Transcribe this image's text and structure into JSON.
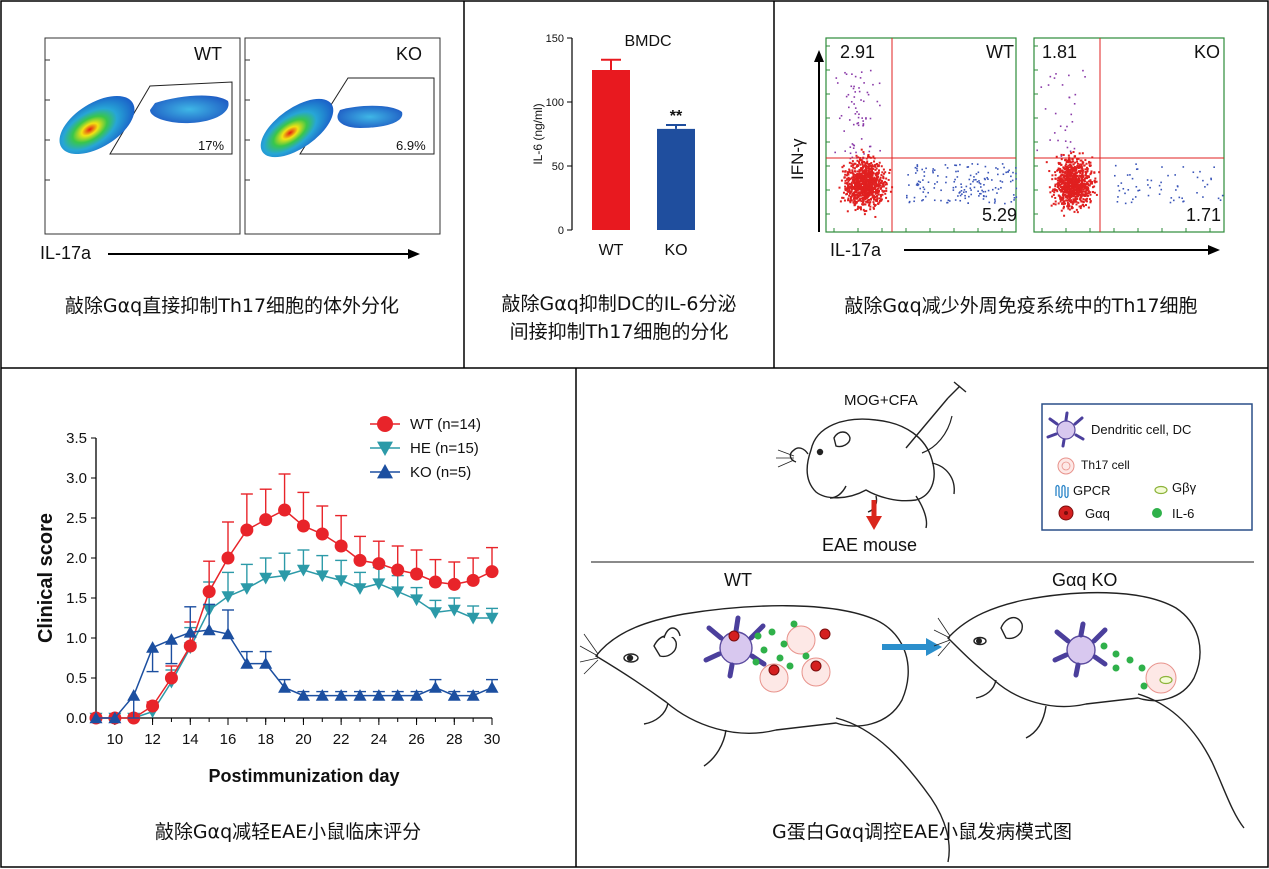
{
  "panels": {
    "flow_wt_ko": {
      "wt_label": "WT",
      "ko_label": "KO",
      "wt_gate_percent": "17%",
      "ko_gate_percent": "6.9%",
      "x_axis_label": "IL-17a",
      "caption": "敲除Gαq直接抑制Th17细胞的体外分化"
    },
    "il6_bar": {
      "caption_line1": "敲除Gαq抑制DC的IL-6分泌",
      "caption_line2": "间接抑制Th17细胞的分化"
    },
    "ifn_flow": {
      "wt_label": "WT",
      "ko_label": "KO",
      "wt_upper_left": "2.91",
      "wt_lower_right": "5.29",
      "ko_upper_left": "1.81",
      "ko_lower_right": "1.71",
      "y_axis_label": "IFN-γ",
      "x_axis_label": "IL-17a",
      "caption": "敲除Gαq减少外周免疫系统中的Th17细胞"
    },
    "eae_score": {
      "caption": "敲除Gαq减轻EAE小鼠临床评分"
    },
    "model": {
      "injection_label": "MOG+CFA",
      "eae_label": "EAE mouse",
      "wt_label": "WT",
      "ko_label": "Gαq KO",
      "legend": {
        "dc": "Dendritic cell, DC",
        "th17": "Th17 cell",
        "gpcr": "GPCR",
        "gby": "Gβγ",
        "gaq": "Gαq",
        "il6": "IL-6"
      },
      "caption": "G蛋白Gαq调控EAE小鼠发病模式图"
    }
  },
  "chart_data": [
    {
      "type": "bar",
      "title": "BMDC",
      "categories": [
        "WT",
        "KO"
      ],
      "values": [
        125,
        79
      ],
      "errors": [
        8,
        3
      ],
      "significance": "**",
      "ylabel": "IL-6 (ng/ml)",
      "ylim": [
        0,
        150
      ],
      "yticks": [
        "0",
        "50",
        "100",
        "150"
      ],
      "colors": [
        "#e8191f",
        "#1f4e9e"
      ]
    },
    {
      "type": "line",
      "xlabel": "Postimmunization day",
      "ylabel": "Clinical score",
      "xlim": [
        9,
        30
      ],
      "ylim": [
        0,
        3.5
      ],
      "xticks": [
        "10",
        "12",
        "14",
        "16",
        "18",
        "20",
        "22",
        "24",
        "26",
        "28",
        "30"
      ],
      "yticks": [
        "0.0",
        "0.5",
        "1.0",
        "1.5",
        "2.0",
        "2.5",
        "3.0",
        "3.5"
      ],
      "legend_position": "top-right",
      "x": [
        9,
        10,
        11,
        12,
        13,
        14,
        15,
        16,
        17,
        18,
        19,
        20,
        21,
        22,
        23,
        24,
        25,
        26,
        27,
        28,
        29,
        30
      ],
      "series": [
        {
          "name": "WT (n=14)",
          "color": "#e8242a",
          "marker": "circle",
          "values": [
            0,
            0,
            0,
            0.15,
            0.5,
            0.9,
            1.58,
            2.0,
            2.35,
            2.48,
            2.6,
            2.4,
            2.3,
            2.15,
            1.97,
            1.93,
            1.85,
            1.8,
            1.7,
            1.67,
            1.72,
            1.83
          ],
          "errors": [
            0,
            0,
            0,
            0.05,
            0.15,
            0.3,
            0.38,
            0.45,
            0.45,
            0.38,
            0.45,
            0.42,
            0.35,
            0.38,
            0.3,
            0.28,
            0.3,
            0.3,
            0.28,
            0.28,
            0.28,
            0.3
          ]
        },
        {
          "name": "HE (n=15)",
          "color": "#2c9aa8",
          "marker": "triangle-down",
          "values": [
            0,
            0,
            0,
            0.08,
            0.45,
            0.88,
            1.35,
            1.52,
            1.62,
            1.75,
            1.78,
            1.85,
            1.78,
            1.72,
            1.62,
            1.68,
            1.58,
            1.48,
            1.32,
            1.35,
            1.25,
            1.25
          ],
          "errors": [
            0,
            0,
            0,
            0.05,
            0.15,
            0.25,
            0.35,
            0.3,
            0.3,
            0.25,
            0.28,
            0.25,
            0.25,
            0.25,
            0.2,
            0.2,
            0.2,
            0.15,
            0.15,
            0.15,
            0.15,
            0.12
          ]
        },
        {
          "name": "KO (n=5)",
          "color": "#1c4fa0",
          "marker": "triangle-up",
          "values": [
            0,
            0,
            0.28,
            0.88,
            0.98,
            1.07,
            1.1,
            1.05,
            0.68,
            0.68,
            0.38,
            0.28,
            0.28,
            0.28,
            0.28,
            0.28,
            0.28,
            0.28,
            0.38,
            0.28,
            0.28,
            0.38
          ],
          "errors": [
            0,
            0,
            0.28,
            0.3,
            0.3,
            0.32,
            0.32,
            0.3,
            0.15,
            0.15,
            0.1,
            0.05,
            0.05,
            0.05,
            0.05,
            0.05,
            0.05,
            0.05,
            0.1,
            0.05,
            0.05,
            0.1
          ]
        }
      ]
    }
  ]
}
